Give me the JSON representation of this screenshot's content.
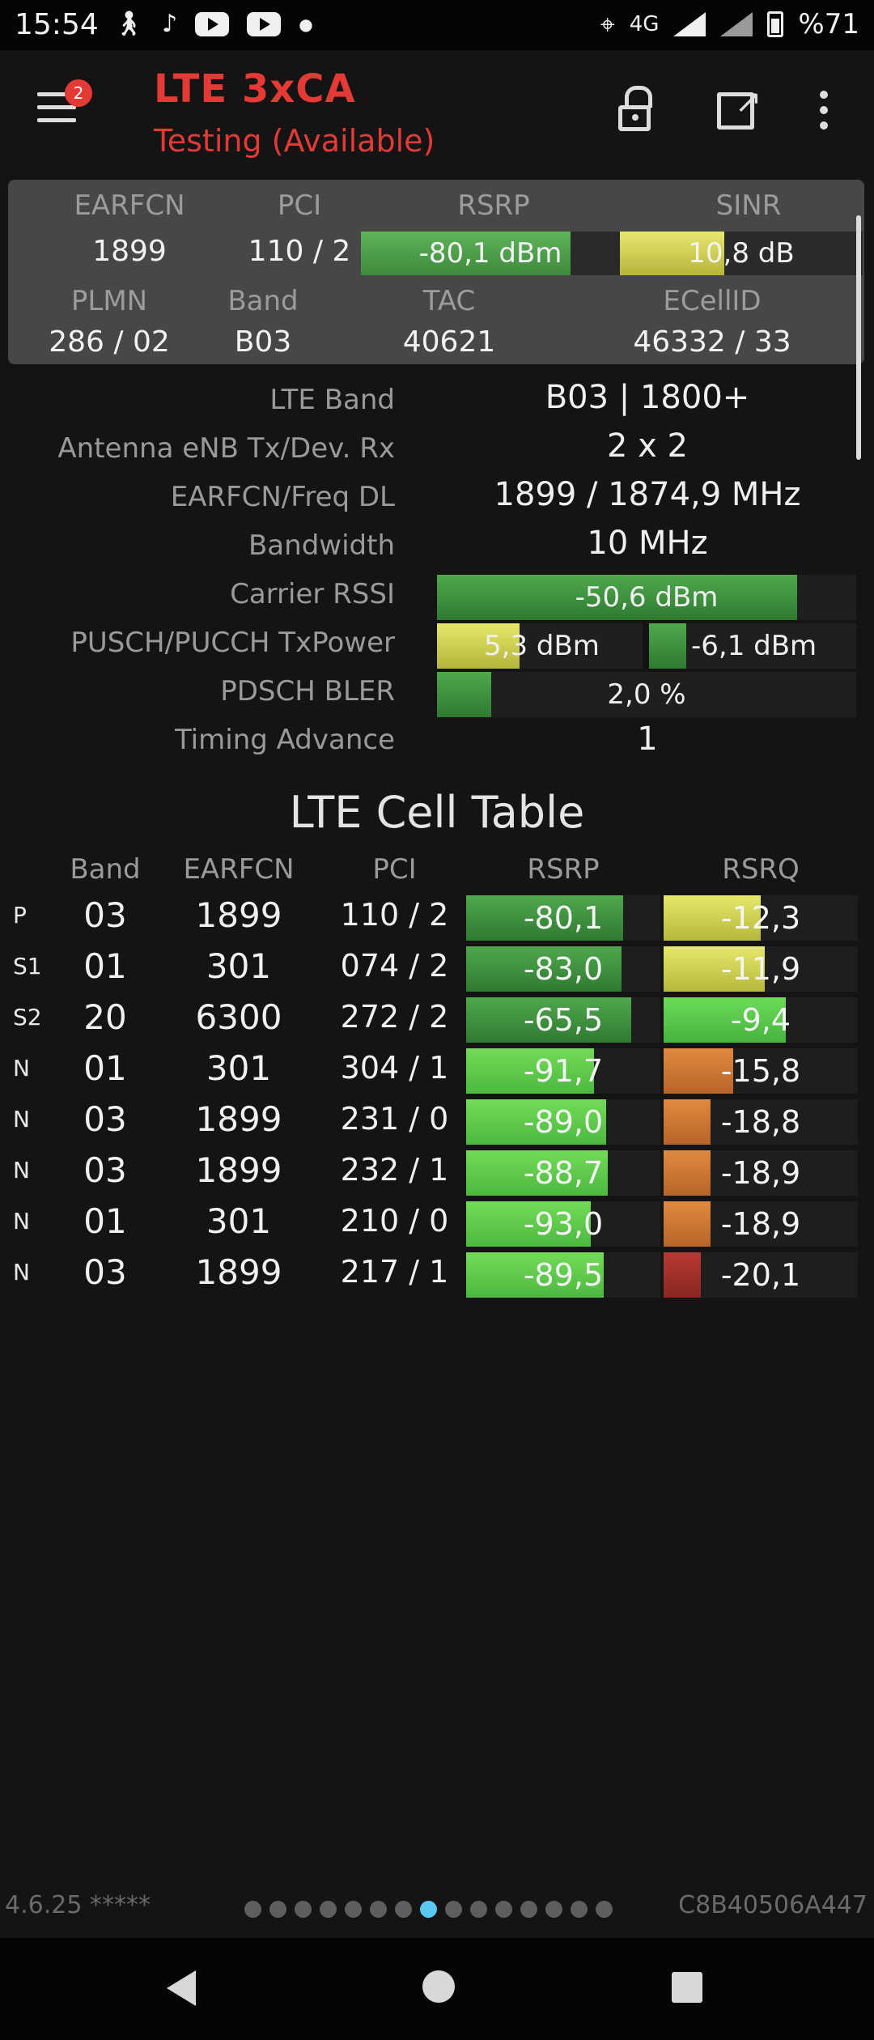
{
  "status_bar": {
    "time": "15:54",
    "network": "4G",
    "battery": "%71",
    "icons": [
      "walking-icon",
      "music-note-icon",
      "youtube-icon",
      "youtube-icon",
      "dot-icon",
      "location-icon",
      "signal-icon",
      "signal-icon",
      "battery-icon"
    ]
  },
  "app_bar": {
    "title": "LTE 3xCA",
    "subtitle": "Testing (Available)",
    "menu_badge": "2",
    "colors": {
      "accent": "#e53935"
    }
  },
  "summary": {
    "headers": {
      "earfcn": "EARFCN",
      "pci": "PCI",
      "rsrp": "RSRP",
      "sinr": "SINR",
      "plmn": "PLMN",
      "band": "Band",
      "tac": "TAC",
      "ecellid": "ECellID"
    },
    "earfcn": "1899",
    "pci": "110 / 2",
    "rsrp": "-80,1 dBm",
    "rsrp_level": 0.81,
    "sinr": "10,8 dB",
    "sinr_level": 0.43,
    "plmn": "286 / 02",
    "band": "B03",
    "tac": "40621",
    "ecellid": "46332 / 33"
  },
  "details": {
    "lte_band": {
      "label": "LTE Band",
      "value": "B03 | 1800+"
    },
    "antenna": {
      "label": "Antenna eNB Tx/Dev. Rx",
      "value": "2 x 2"
    },
    "earfcn_freq": {
      "label": "EARFCN/Freq DL",
      "value": "1899 / 1874,9 MHz"
    },
    "bandwidth": {
      "label": "Bandwidth",
      "value": "10 MHz"
    },
    "carrier_rssi": {
      "label": "Carrier RSSI",
      "value": "-50,6 dBm",
      "level": 0.86
    },
    "tx_power": {
      "label": "PUSCH/PUCCH TxPower",
      "pusch": "5,3 dBm",
      "pusch_level": 0.4,
      "pucch": "-6,1 dBm",
      "pucch_level": 0.18
    },
    "bler": {
      "label": "PDSCH BLER",
      "value": "2,0 %",
      "level": 0.13
    },
    "timing_advance": {
      "label": "Timing Advance",
      "value": "1"
    }
  },
  "cell_table": {
    "title": "LTE Cell Table",
    "headers": {
      "band": "Band",
      "earfcn": "EARFCN",
      "pci": "PCI",
      "rsrp": "RSRP",
      "rsrq": "RSRQ"
    },
    "rows": [
      {
        "type": "P",
        "band": "03",
        "earfcn": "1899",
        "pci": "110 / 2",
        "rsrp": "-80,1",
        "rsrp_level": 0.81,
        "rsrq": "-12,3",
        "rsrq_level": 0.5
      },
      {
        "type": "S1",
        "band": "01",
        "earfcn": "301",
        "pci": "074 / 2",
        "rsrp": "-83,0",
        "rsrp_level": 0.8,
        "rsrq": "-11,9",
        "rsrq_level": 0.52
      },
      {
        "type": "S2",
        "band": "20",
        "earfcn": "6300",
        "pci": "272 / 2",
        "rsrp": "-65,5",
        "rsrp_level": 0.85,
        "rsrq": "-9,4",
        "rsrq_level": 0.63
      },
      {
        "type": "N",
        "band": "01",
        "earfcn": "301",
        "pci": "304 / 1",
        "rsrp": "-91,7",
        "rsrp_level": 0.66,
        "rsrq": "-15,8",
        "rsrq_level": 0.36
      },
      {
        "type": "N",
        "band": "03",
        "earfcn": "1899",
        "pci": "231 / 0",
        "rsrp": "-89,0",
        "rsrp_level": 0.72,
        "rsrq": "-18,8",
        "rsrq_level": 0.24
      },
      {
        "type": "N",
        "band": "03",
        "earfcn": "1899",
        "pci": "232 / 1",
        "rsrp": "-88,7",
        "rsrp_level": 0.73,
        "rsrq": "-18,9",
        "rsrq_level": 0.24
      },
      {
        "type": "N",
        "band": "01",
        "earfcn": "301",
        "pci": "210 / 0",
        "rsrp": "-93,0",
        "rsrp_level": 0.64,
        "rsrq": "-18,9",
        "rsrq_level": 0.24
      },
      {
        "type": "N",
        "band": "03",
        "earfcn": "1899",
        "pci": "217 / 1",
        "rsrp": "-89,5",
        "rsrp_level": 0.71,
        "rsrq": "-20,1",
        "rsrq_level": 0.19
      }
    ]
  },
  "footer": {
    "version": "4.6.25 *****",
    "device_id": "C8B40506A447",
    "page_count": 15,
    "active_page": 8
  }
}
